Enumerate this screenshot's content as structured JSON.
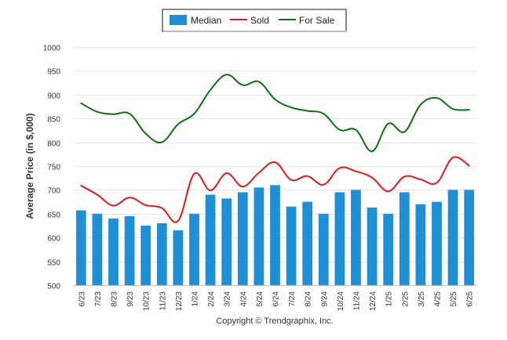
{
  "legend": {
    "median": "Median",
    "sold": "Sold",
    "for_sale": "For Sale"
  },
  "credit": "Copyright © Trendgraphix, Inc.",
  "chart_data": {
    "type": "bar",
    "title": "",
    "ylabel": "Average Price (in $,000)",
    "xlabel": "",
    "ylim": [
      500,
      1000
    ],
    "yticks": [
      500,
      550,
      600,
      650,
      700,
      750,
      800,
      850,
      900,
      950,
      1000
    ],
    "grid": true,
    "legend_position": "top-center",
    "categories": [
      "6/23",
      "7/23",
      "8/23",
      "9/23",
      "10/23",
      "11/23",
      "12/23",
      "1/24",
      "2/24",
      "3/24",
      "4/24",
      "5/24",
      "6/24",
      "7/24",
      "8/24",
      "9/24",
      "10/24",
      "11/24",
      "12/24",
      "1/25",
      "2/25",
      "3/25",
      "4/25",
      "5/25",
      "6/25"
    ],
    "series": [
      {
        "name": "Median",
        "kind": "bar",
        "color": "#1f8fd6",
        "values": [
          657,
          650,
          640,
          645,
          625,
          630,
          615,
          650,
          690,
          682,
          695,
          705,
          710,
          665,
          675,
          650,
          695,
          700,
          663,
          650,
          695,
          670,
          675,
          700,
          700
        ]
      },
      {
        "name": "Sold",
        "kind": "line",
        "color": "#e8161c",
        "values": [
          709,
          690,
          667,
          684,
          668,
          662,
          635,
          734,
          699,
          735,
          707,
          736,
          758,
          721,
          729,
          711,
          746,
          739,
          726,
          697,
          728,
          722,
          715,
          768,
          751
        ]
      },
      {
        "name": "For Sale",
        "kind": "line",
        "color": "#0d6e12",
        "values": [
          882,
          864,
          859,
          860,
          818,
          800,
          838,
          860,
          910,
          942,
          920,
          927,
          890,
          873,
          866,
          860,
          826,
          826,
          781,
          839,
          822,
          879,
          893,
          870,
          868
        ]
      }
    ]
  }
}
